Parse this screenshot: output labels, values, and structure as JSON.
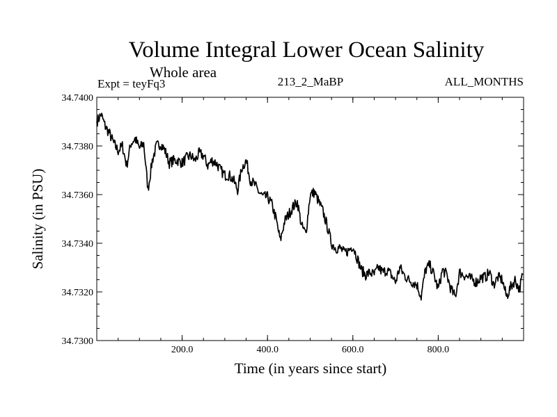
{
  "chart_data": {
    "type": "line",
    "title": "Volume Integral Lower Ocean Salinity",
    "subtitle": "Whole area",
    "info_left": "Expt = teyFq3",
    "info_center": "213_2_MaBP",
    "info_right": "ALL_MONTHS",
    "xlabel": "Time (in years since start)",
    "ylabel": "Salinity (in PSU)",
    "xlim": [
      0,
      1000
    ],
    "ylim": [
      34.73,
      34.74
    ],
    "xticks": [
      200,
      400,
      600,
      800
    ],
    "xtick_labels": [
      "200.0",
      "400.0",
      "600.0",
      "800.0"
    ],
    "yticks": [
      34.73,
      34.732,
      34.734,
      34.736,
      34.738,
      34.74
    ],
    "ytick_labels": [
      "34.7300",
      "34.7320",
      "34.7340",
      "34.7360",
      "34.7380",
      "34.7400"
    ],
    "x_minor_step": 50,
    "y_minor_step": 0.0005,
    "grid": false,
    "series": [
      {
        "name": "salinity",
        "color": "#000000",
        "x": [
          0,
          10,
          20,
          30,
          40,
          50,
          60,
          70,
          80,
          90,
          100,
          110,
          120,
          130,
          140,
          150,
          160,
          170,
          180,
          190,
          200,
          210,
          220,
          230,
          240,
          250,
          260,
          270,
          280,
          290,
          300,
          310,
          320,
          330,
          340,
          350,
          360,
          370,
          380,
          390,
          400,
          410,
          420,
          430,
          440,
          450,
          460,
          470,
          480,
          490,
          500,
          510,
          520,
          530,
          540,
          550,
          560,
          570,
          580,
          590,
          600,
          610,
          620,
          630,
          640,
          650,
          660,
          670,
          680,
          690,
          700,
          710,
          720,
          730,
          740,
          750,
          760,
          770,
          780,
          790,
          800,
          810,
          820,
          830,
          840,
          850,
          860,
          870,
          880,
          890,
          900,
          910,
          920,
          930,
          940,
          950,
          960,
          970,
          980,
          990,
          998
        ],
        "y": [
          34.739,
          34.7393,
          34.7388,
          34.7385,
          34.7381,
          34.7378,
          34.738,
          34.7372,
          34.7381,
          34.7383,
          34.7379,
          34.7381,
          34.7362,
          34.7374,
          34.738,
          34.7381,
          34.7378,
          34.7373,
          34.7374,
          34.7374,
          34.7373,
          34.7375,
          34.7376,
          34.7374,
          34.7377,
          34.7376,
          34.7372,
          34.7374,
          34.7373,
          34.737,
          34.7368,
          34.7368,
          34.7366,
          34.7362,
          34.7371,
          34.7374,
          34.7366,
          34.7364,
          34.7361,
          34.7359,
          34.7359,
          34.7356,
          34.735,
          34.7341,
          34.7349,
          34.7352,
          34.7355,
          34.7357,
          34.7347,
          34.7344,
          34.736,
          34.7361,
          34.7357,
          34.7353,
          34.7347,
          34.734,
          34.7338,
          34.7338,
          34.7336,
          34.7337,
          34.7339,
          34.7334,
          34.7329,
          34.7327,
          34.7328,
          34.7327,
          34.733,
          34.7328,
          34.7329,
          34.7327,
          34.7324,
          34.733,
          34.7327,
          34.7325,
          34.7324,
          34.7323,
          34.7318,
          34.7329,
          34.7331,
          34.7327,
          34.7321,
          34.7329,
          34.7327,
          34.7321,
          34.7318,
          34.7328,
          34.7327,
          34.7326,
          34.7325,
          34.7324,
          34.7326,
          34.7326,
          34.7328,
          34.7323,
          34.7326,
          34.7325,
          34.7318,
          34.7322,
          34.7325,
          34.7321,
          34.7327
        ]
      }
    ]
  }
}
